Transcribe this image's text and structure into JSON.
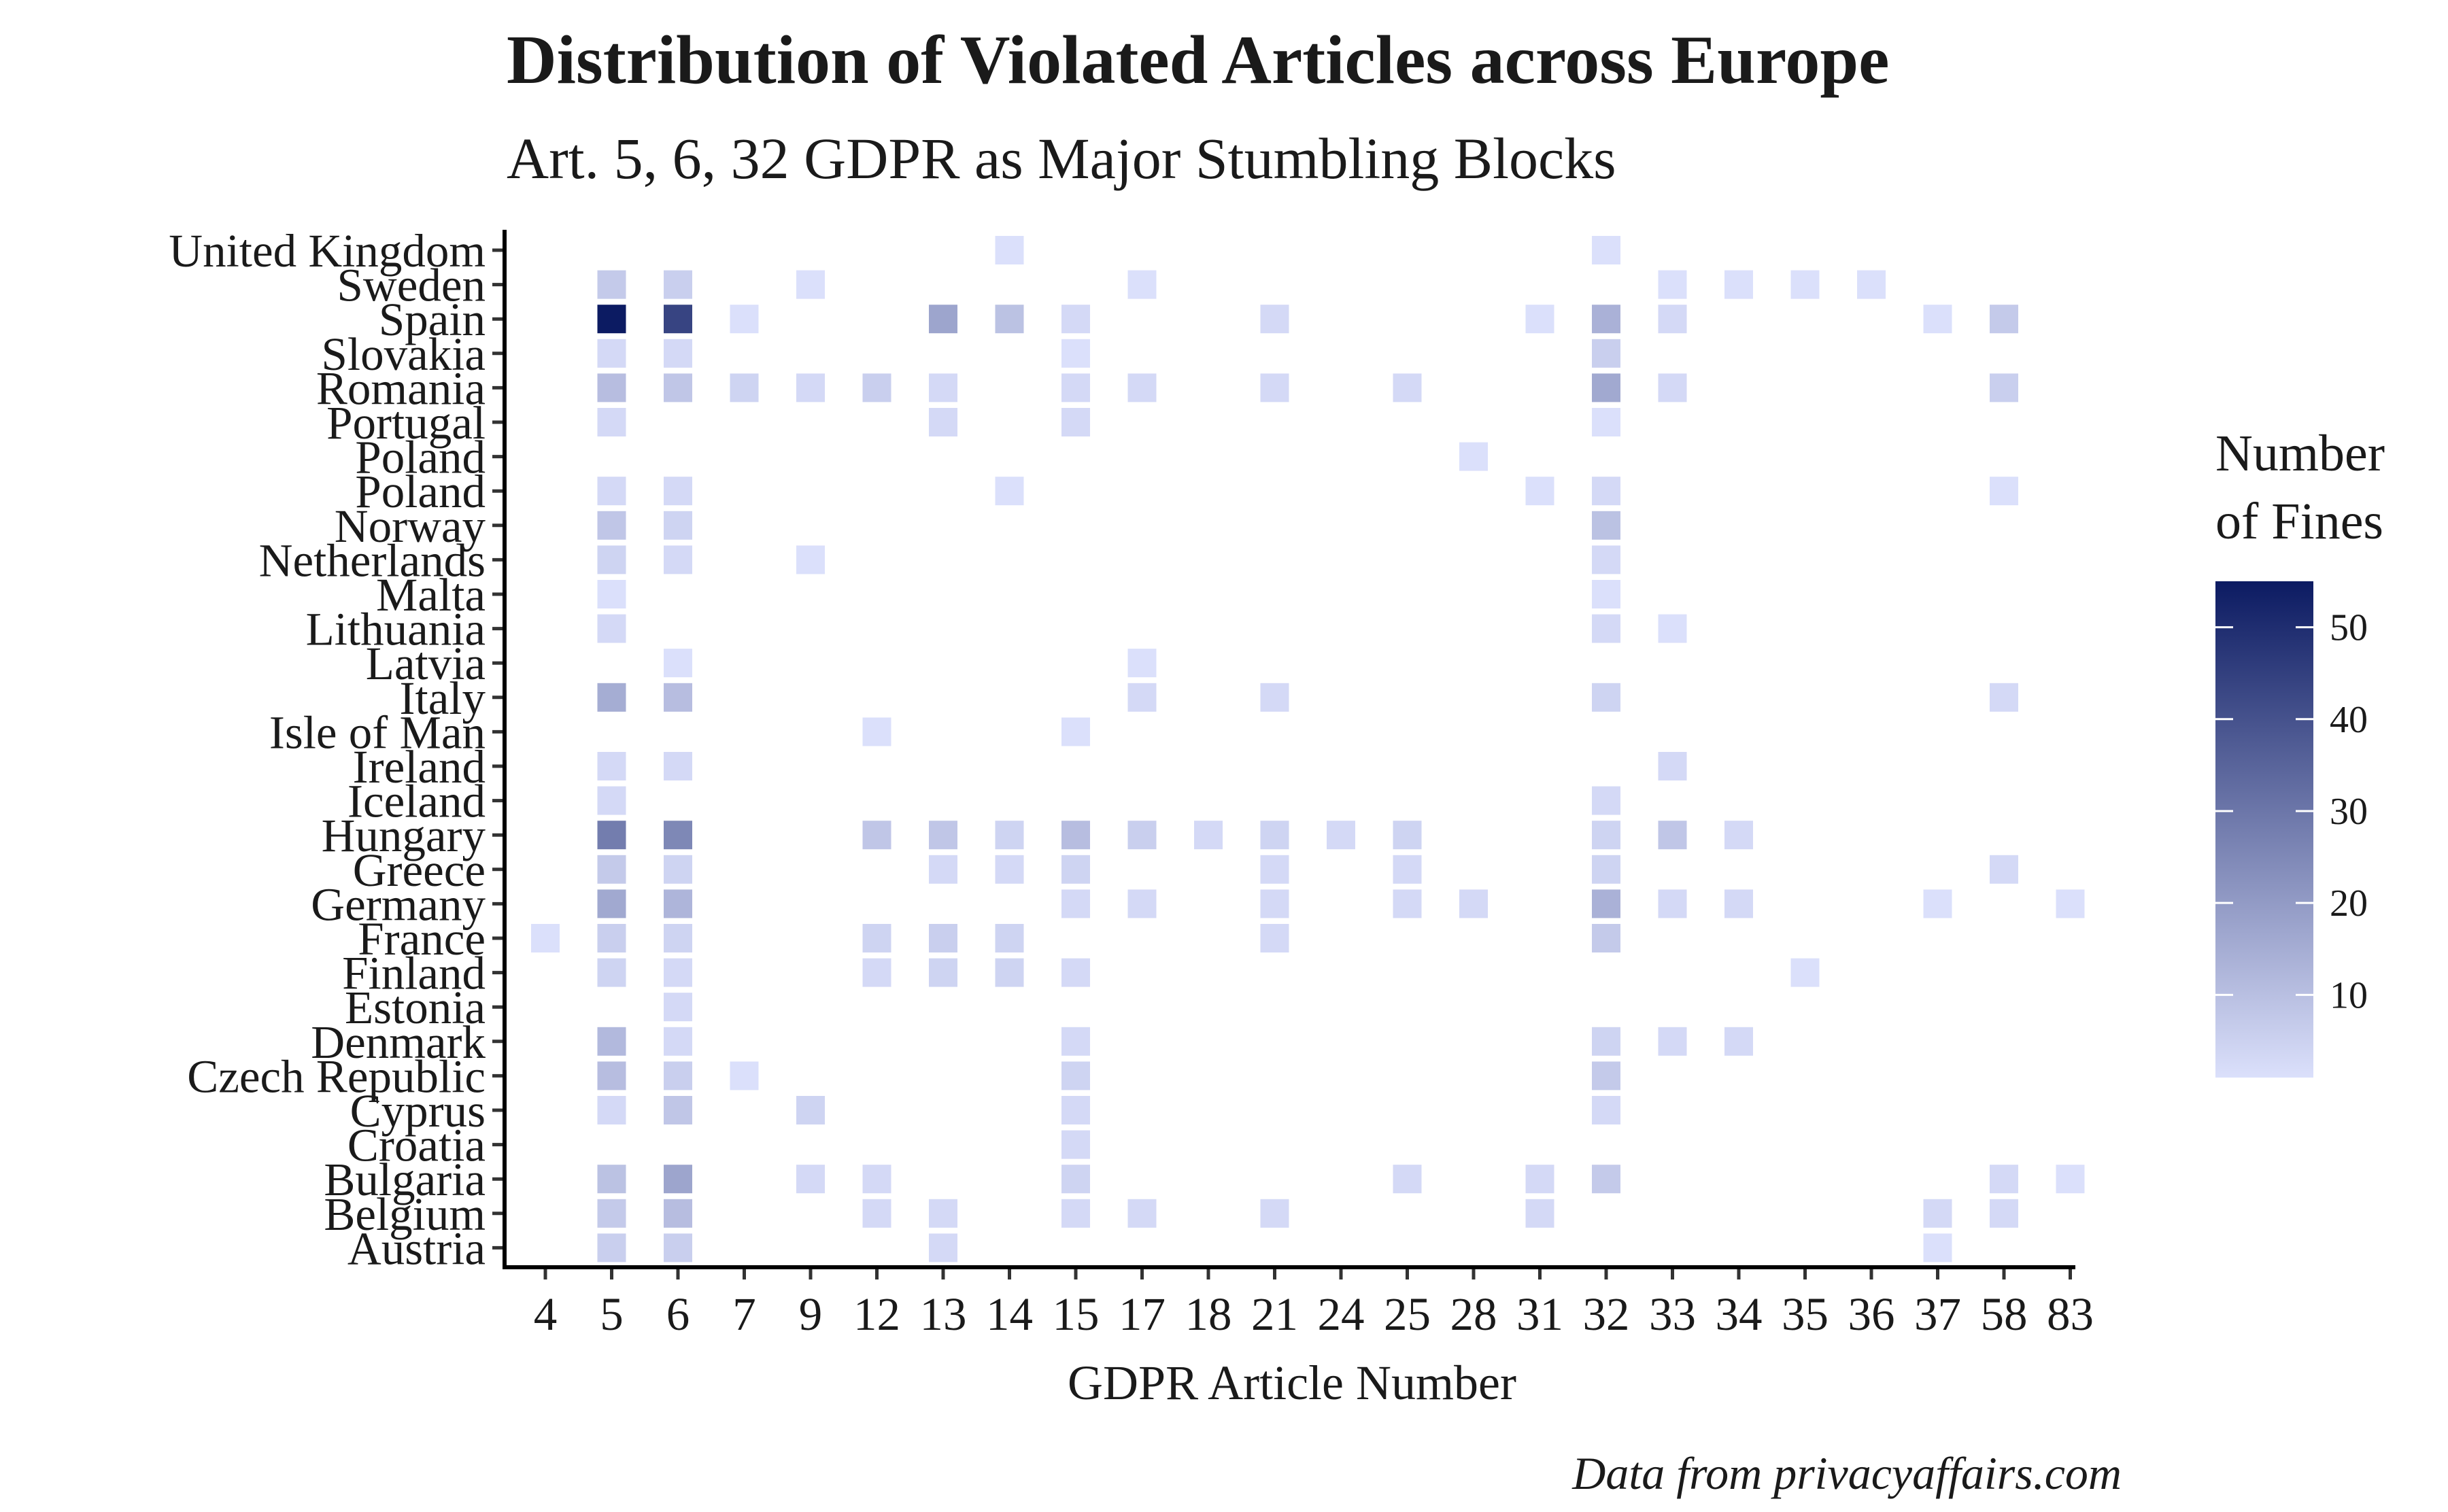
{
  "chart_data": {
    "type": "heatmap",
    "title": "Distribution of Violated Articles across Europe",
    "subtitle": "Art. 5, 6, 32 GDPR as Major Stumbling Blocks",
    "xlabel": "GDPR Article Number",
    "caption": "Data from privacyaffairs.com",
    "legend": {
      "title_lines": [
        "Number",
        "of Fines"
      ],
      "ticks": [
        10,
        20,
        30,
        40,
        50
      ],
      "range": [
        1,
        55
      ],
      "low_color": "#dbe0fb",
      "high_color": "#0c1b62",
      "placement": "right"
    },
    "grid": false,
    "x_categories": [
      "4",
      "5",
      "6",
      "7",
      "9",
      "12",
      "13",
      "14",
      "15",
      "17",
      "18",
      "21",
      "24",
      "25",
      "28",
      "31",
      "32",
      "33",
      "34",
      "35",
      "36",
      "37",
      "58",
      "83"
    ],
    "y_categories": [
      "United Kingdom",
      "Sweden",
      "Spain",
      "Slovakia",
      "Romania",
      "Portugal",
      "Poland ",
      "Poland",
      "Norway",
      "Netherlands",
      "Malta",
      "Lithuania",
      "Latvia",
      "Italy",
      "Isle of Man",
      "Ireland",
      "Iceland",
      "Hungary",
      "Greece",
      "Germany",
      "France",
      "Finland",
      "Estonia",
      "Denmark",
      "Czech Republic",
      "Cyprus",
      "Croatia",
      "Bulgaria",
      "Belgium",
      "Austria"
    ],
    "values": [
      {
        "y": "United Kingdom",
        "x": "14",
        "v": 1
      },
      {
        "y": "United Kingdom",
        "x": "32",
        "v": 1
      },
      {
        "y": "Sweden",
        "x": "5",
        "v": 5
      },
      {
        "y": "Sweden",
        "x": "6",
        "v": 4
      },
      {
        "y": "Sweden",
        "x": "9",
        "v": 1
      },
      {
        "y": "Sweden",
        "x": "17",
        "v": 1
      },
      {
        "y": "Sweden",
        "x": "33",
        "v": 1
      },
      {
        "y": "Sweden",
        "x": "34",
        "v": 1
      },
      {
        "y": "Sweden",
        "x": "35",
        "v": 1
      },
      {
        "y": "Sweden",
        "x": "36",
        "v": 1
      },
      {
        "y": "Spain",
        "x": "5",
        "v": 55
      },
      {
        "y": "Spain",
        "x": "6",
        "v": 42
      },
      {
        "y": "Spain",
        "x": "7",
        "v": 1
      },
      {
        "y": "Spain",
        "x": "13",
        "v": 14
      },
      {
        "y": "Spain",
        "x": "14",
        "v": 7
      },
      {
        "y": "Spain",
        "x": "15",
        "v": 2
      },
      {
        "y": "Spain",
        "x": "21",
        "v": 2
      },
      {
        "y": "Spain",
        "x": "31",
        "v": 1
      },
      {
        "y": "Spain",
        "x": "32",
        "v": 11
      },
      {
        "y": "Spain",
        "x": "33",
        "v": 2
      },
      {
        "y": "Spain",
        "x": "37",
        "v": 1
      },
      {
        "y": "Spain",
        "x": "58",
        "v": 5
      },
      {
        "y": "Slovakia",
        "x": "5",
        "v": 2
      },
      {
        "y": "Slovakia",
        "x": "6",
        "v": 2
      },
      {
        "y": "Slovakia",
        "x": "15",
        "v": 1
      },
      {
        "y": "Slovakia",
        "x": "32",
        "v": 4
      },
      {
        "y": "Romania",
        "x": "5",
        "v": 8
      },
      {
        "y": "Romania",
        "x": "6",
        "v": 6
      },
      {
        "y": "Romania",
        "x": "7",
        "v": 3
      },
      {
        "y": "Romania",
        "x": "9",
        "v": 2
      },
      {
        "y": "Romania",
        "x": "12",
        "v": 4
      },
      {
        "y": "Romania",
        "x": "13",
        "v": 2
      },
      {
        "y": "Romania",
        "x": "15",
        "v": 2
      },
      {
        "y": "Romania",
        "x": "17",
        "v": 2
      },
      {
        "y": "Romania",
        "x": "21",
        "v": 2
      },
      {
        "y": "Romania",
        "x": "25",
        "v": 2
      },
      {
        "y": "Romania",
        "x": "32",
        "v": 13
      },
      {
        "y": "Romania",
        "x": "33",
        "v": 2
      },
      {
        "y": "Romania",
        "x": "58",
        "v": 4
      },
      {
        "y": "Portugal",
        "x": "5",
        "v": 2
      },
      {
        "y": "Portugal",
        "x": "13",
        "v": 2
      },
      {
        "y": "Portugal",
        "x": "15",
        "v": 2
      },
      {
        "y": "Portugal",
        "x": "32",
        "v": 1
      },
      {
        "y": "Poland ",
        "x": "28",
        "v": 1
      },
      {
        "y": "Poland",
        "x": "5",
        "v": 2
      },
      {
        "y": "Poland",
        "x": "6",
        "v": 2
      },
      {
        "y": "Poland",
        "x": "14",
        "v": 1
      },
      {
        "y": "Poland",
        "x": "31",
        "v": 1
      },
      {
        "y": "Poland",
        "x": "32",
        "v": 2
      },
      {
        "y": "Poland",
        "x": "58",
        "v": 1
      },
      {
        "y": "Norway",
        "x": "5",
        "v": 6
      },
      {
        "y": "Norway",
        "x": "6",
        "v": 3
      },
      {
        "y": "Norway",
        "x": "32",
        "v": 7
      },
      {
        "y": "Netherlands",
        "x": "5",
        "v": 3
      },
      {
        "y": "Netherlands",
        "x": "6",
        "v": 2
      },
      {
        "y": "Netherlands",
        "x": "9",
        "v": 1
      },
      {
        "y": "Netherlands",
        "x": "32",
        "v": 2
      },
      {
        "y": "Malta",
        "x": "5",
        "v": 1
      },
      {
        "y": "Malta",
        "x": "32",
        "v": 1
      },
      {
        "y": "Lithuania",
        "x": "5",
        "v": 2
      },
      {
        "y": "Lithuania",
        "x": "32",
        "v": 2
      },
      {
        "y": "Lithuania",
        "x": "33",
        "v": 1
      },
      {
        "y": "Latvia",
        "x": "6",
        "v": 1
      },
      {
        "y": "Latvia",
        "x": "17",
        "v": 1
      },
      {
        "y": "Italy",
        "x": "5",
        "v": 12
      },
      {
        "y": "Italy",
        "x": "6",
        "v": 8
      },
      {
        "y": "Italy",
        "x": "17",
        "v": 2
      },
      {
        "y": "Italy",
        "x": "21",
        "v": 2
      },
      {
        "y": "Italy",
        "x": "32",
        "v": 3
      },
      {
        "y": "Italy",
        "x": "58",
        "v": 2
      },
      {
        "y": "Isle of Man",
        "x": "12",
        "v": 1
      },
      {
        "y": "Isle of Man",
        "x": "15",
        "v": 1
      },
      {
        "y": "Ireland",
        "x": "5",
        "v": 2
      },
      {
        "y": "Ireland",
        "x": "6",
        "v": 2
      },
      {
        "y": "Ireland",
        "x": "33",
        "v": 2
      },
      {
        "y": "Iceland",
        "x": "5",
        "v": 2
      },
      {
        "y": "Iceland",
        "x": "32",
        "v": 2
      },
      {
        "y": "Hungary",
        "x": "5",
        "v": 25
      },
      {
        "y": "Hungary",
        "x": "6",
        "v": 22
      },
      {
        "y": "Hungary",
        "x": "12",
        "v": 6
      },
      {
        "y": "Hungary",
        "x": "13",
        "v": 6
      },
      {
        "y": "Hungary",
        "x": "14",
        "v": 3
      },
      {
        "y": "Hungary",
        "x": "15",
        "v": 8
      },
      {
        "y": "Hungary",
        "x": "17",
        "v": 4
      },
      {
        "y": "Hungary",
        "x": "18",
        "v": 2
      },
      {
        "y": "Hungary",
        "x": "21",
        "v": 3
      },
      {
        "y": "Hungary",
        "x": "24",
        "v": 2
      },
      {
        "y": "Hungary",
        "x": "25",
        "v": 3
      },
      {
        "y": "Hungary",
        "x": "32",
        "v": 3
      },
      {
        "y": "Hungary",
        "x": "33",
        "v": 6
      },
      {
        "y": "Hungary",
        "x": "34",
        "v": 2
      },
      {
        "y": "Greece",
        "x": "5",
        "v": 5
      },
      {
        "y": "Greece",
        "x": "6",
        "v": 3
      },
      {
        "y": "Greece",
        "x": "13",
        "v": 2
      },
      {
        "y": "Greece",
        "x": "14",
        "v": 2
      },
      {
        "y": "Greece",
        "x": "15",
        "v": 3
      },
      {
        "y": "Greece",
        "x": "21",
        "v": 2
      },
      {
        "y": "Greece",
        "x": "25",
        "v": 2
      },
      {
        "y": "Greece",
        "x": "32",
        "v": 3
      },
      {
        "y": "Greece",
        "x": "58",
        "v": 2
      },
      {
        "y": "Germany",
        "x": "5",
        "v": 13
      },
      {
        "y": "Germany",
        "x": "6",
        "v": 10
      },
      {
        "y": "Germany",
        "x": "15",
        "v": 2
      },
      {
        "y": "Germany",
        "x": "17",
        "v": 2
      },
      {
        "y": "Germany",
        "x": "21",
        "v": 2
      },
      {
        "y": "Germany",
        "x": "25",
        "v": 2
      },
      {
        "y": "Germany",
        "x": "28",
        "v": 2
      },
      {
        "y": "Germany",
        "x": "32",
        "v": 11
      },
      {
        "y": "Germany",
        "x": "33",
        "v": 2
      },
      {
        "y": "Germany",
        "x": "34",
        "v": 2
      },
      {
        "y": "Germany",
        "x": "37",
        "v": 1
      },
      {
        "y": "Germany",
        "x": "83",
        "v": 1
      },
      {
        "y": "France",
        "x": "4",
        "v": 1
      },
      {
        "y": "France",
        "x": "5",
        "v": 4
      },
      {
        "y": "France",
        "x": "6",
        "v": 3
      },
      {
        "y": "France",
        "x": "12",
        "v": 3
      },
      {
        "y": "France",
        "x": "13",
        "v": 4
      },
      {
        "y": "France",
        "x": "14",
        "v": 3
      },
      {
        "y": "France",
        "x": "21",
        "v": 2
      },
      {
        "y": "France",
        "x": "32",
        "v": 5
      },
      {
        "y": "Finland",
        "x": "5",
        "v": 3
      },
      {
        "y": "Finland",
        "x": "6",
        "v": 2
      },
      {
        "y": "Finland",
        "x": "12",
        "v": 2
      },
      {
        "y": "Finland",
        "x": "13",
        "v": 3
      },
      {
        "y": "Finland",
        "x": "14",
        "v": 3
      },
      {
        "y": "Finland",
        "x": "15",
        "v": 2
      },
      {
        "y": "Finland",
        "x": "35",
        "v": 1
      },
      {
        "y": "Estonia",
        "x": "6",
        "v": 2
      },
      {
        "y": "Denmark",
        "x": "5",
        "v": 9
      },
      {
        "y": "Denmark",
        "x": "6",
        "v": 2
      },
      {
        "y": "Denmark",
        "x": "15",
        "v": 2
      },
      {
        "y": "Denmark",
        "x": "32",
        "v": 3
      },
      {
        "y": "Denmark",
        "x": "33",
        "v": 2
      },
      {
        "y": "Denmark",
        "x": "34",
        "v": 2
      },
      {
        "y": "Czech Republic",
        "x": "5",
        "v": 8
      },
      {
        "y": "Czech Republic",
        "x": "6",
        "v": 4
      },
      {
        "y": "Czech Republic",
        "x": "7",
        "v": 1
      },
      {
        "y": "Czech Republic",
        "x": "15",
        "v": 3
      },
      {
        "y": "Czech Republic",
        "x": "32",
        "v": 5
      },
      {
        "y": "Cyprus",
        "x": "5",
        "v": 2
      },
      {
        "y": "Cyprus",
        "x": "6",
        "v": 6
      },
      {
        "y": "Cyprus",
        "x": "9",
        "v": 3
      },
      {
        "y": "Cyprus",
        "x": "15",
        "v": 2
      },
      {
        "y": "Cyprus",
        "x": "32",
        "v": 2
      },
      {
        "y": "Croatia",
        "x": "15",
        "v": 2
      },
      {
        "y": "Bulgaria",
        "x": "5",
        "v": 7
      },
      {
        "y": "Bulgaria",
        "x": "6",
        "v": 14
      },
      {
        "y": "Bulgaria",
        "x": "9",
        "v": 2
      },
      {
        "y": "Bulgaria",
        "x": "12",
        "v": 2
      },
      {
        "y": "Bulgaria",
        "x": "15",
        "v": 3
      },
      {
        "y": "Bulgaria",
        "x": "25",
        "v": 2
      },
      {
        "y": "Bulgaria",
        "x": "31",
        "v": 2
      },
      {
        "y": "Bulgaria",
        "x": "32",
        "v": 5
      },
      {
        "y": "Bulgaria",
        "x": "58",
        "v": 2
      },
      {
        "y": "Bulgaria",
        "x": "83",
        "v": 1
      },
      {
        "y": "Belgium",
        "x": "5",
        "v": 5
      },
      {
        "y": "Belgium",
        "x": "6",
        "v": 8
      },
      {
        "y": "Belgium",
        "x": "12",
        "v": 2
      },
      {
        "y": "Belgium",
        "x": "13",
        "v": 2
      },
      {
        "y": "Belgium",
        "x": "15",
        "v": 2
      },
      {
        "y": "Belgium",
        "x": "17",
        "v": 2
      },
      {
        "y": "Belgium",
        "x": "21",
        "v": 2
      },
      {
        "y": "Belgium",
        "x": "31",
        "v": 2
      },
      {
        "y": "Belgium",
        "x": "37",
        "v": 2
      },
      {
        "y": "Belgium",
        "x": "58",
        "v": 2
      },
      {
        "y": "Austria",
        "x": "5",
        "v": 4
      },
      {
        "y": "Austria",
        "x": "6",
        "v": 4
      },
      {
        "y": "Austria",
        "x": "13",
        "v": 2
      },
      {
        "y": "Austria",
        "x": "37",
        "v": 1
      }
    ]
  }
}
